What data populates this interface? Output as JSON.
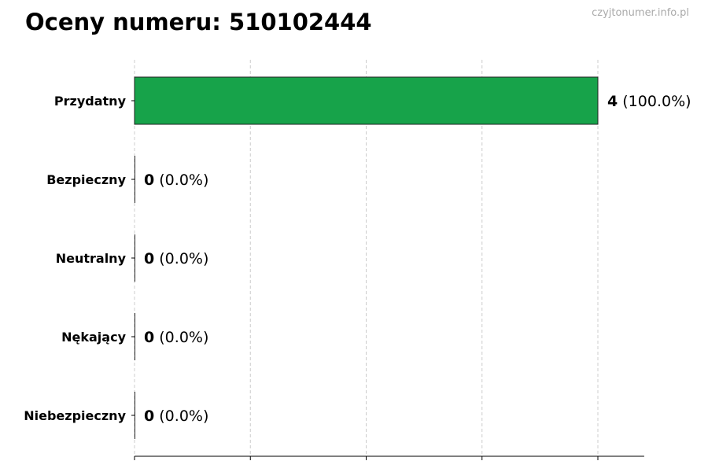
{
  "chart_data": {
    "type": "bar",
    "orientation": "horizontal",
    "title": "Oceny numeru: 510102444",
    "watermark": "czyjtonumer.info.pl",
    "categories": [
      "Przydatny",
      "Bezpieczny",
      "Neutralny",
      "Nękający",
      "Niebezpieczny"
    ],
    "values": [
      4,
      0,
      0,
      0,
      0
    ],
    "value_labels": [
      {
        "count": "4",
        "percent": "(100.0%)"
      },
      {
        "count": "0",
        "percent": "(0.0%)"
      },
      {
        "count": "0",
        "percent": "(0.0%)"
      },
      {
        "count": "0",
        "percent": "(0.0%)"
      },
      {
        "count": "0",
        "percent": "(0.0%)"
      }
    ],
    "xlim": [
      0,
      4.4
    ],
    "x_gridlines": [
      0,
      1,
      2,
      3,
      4
    ],
    "grid": "x dashed",
    "bar_color": "#17a34a",
    "xlabel": "",
    "ylabel": ""
  }
}
